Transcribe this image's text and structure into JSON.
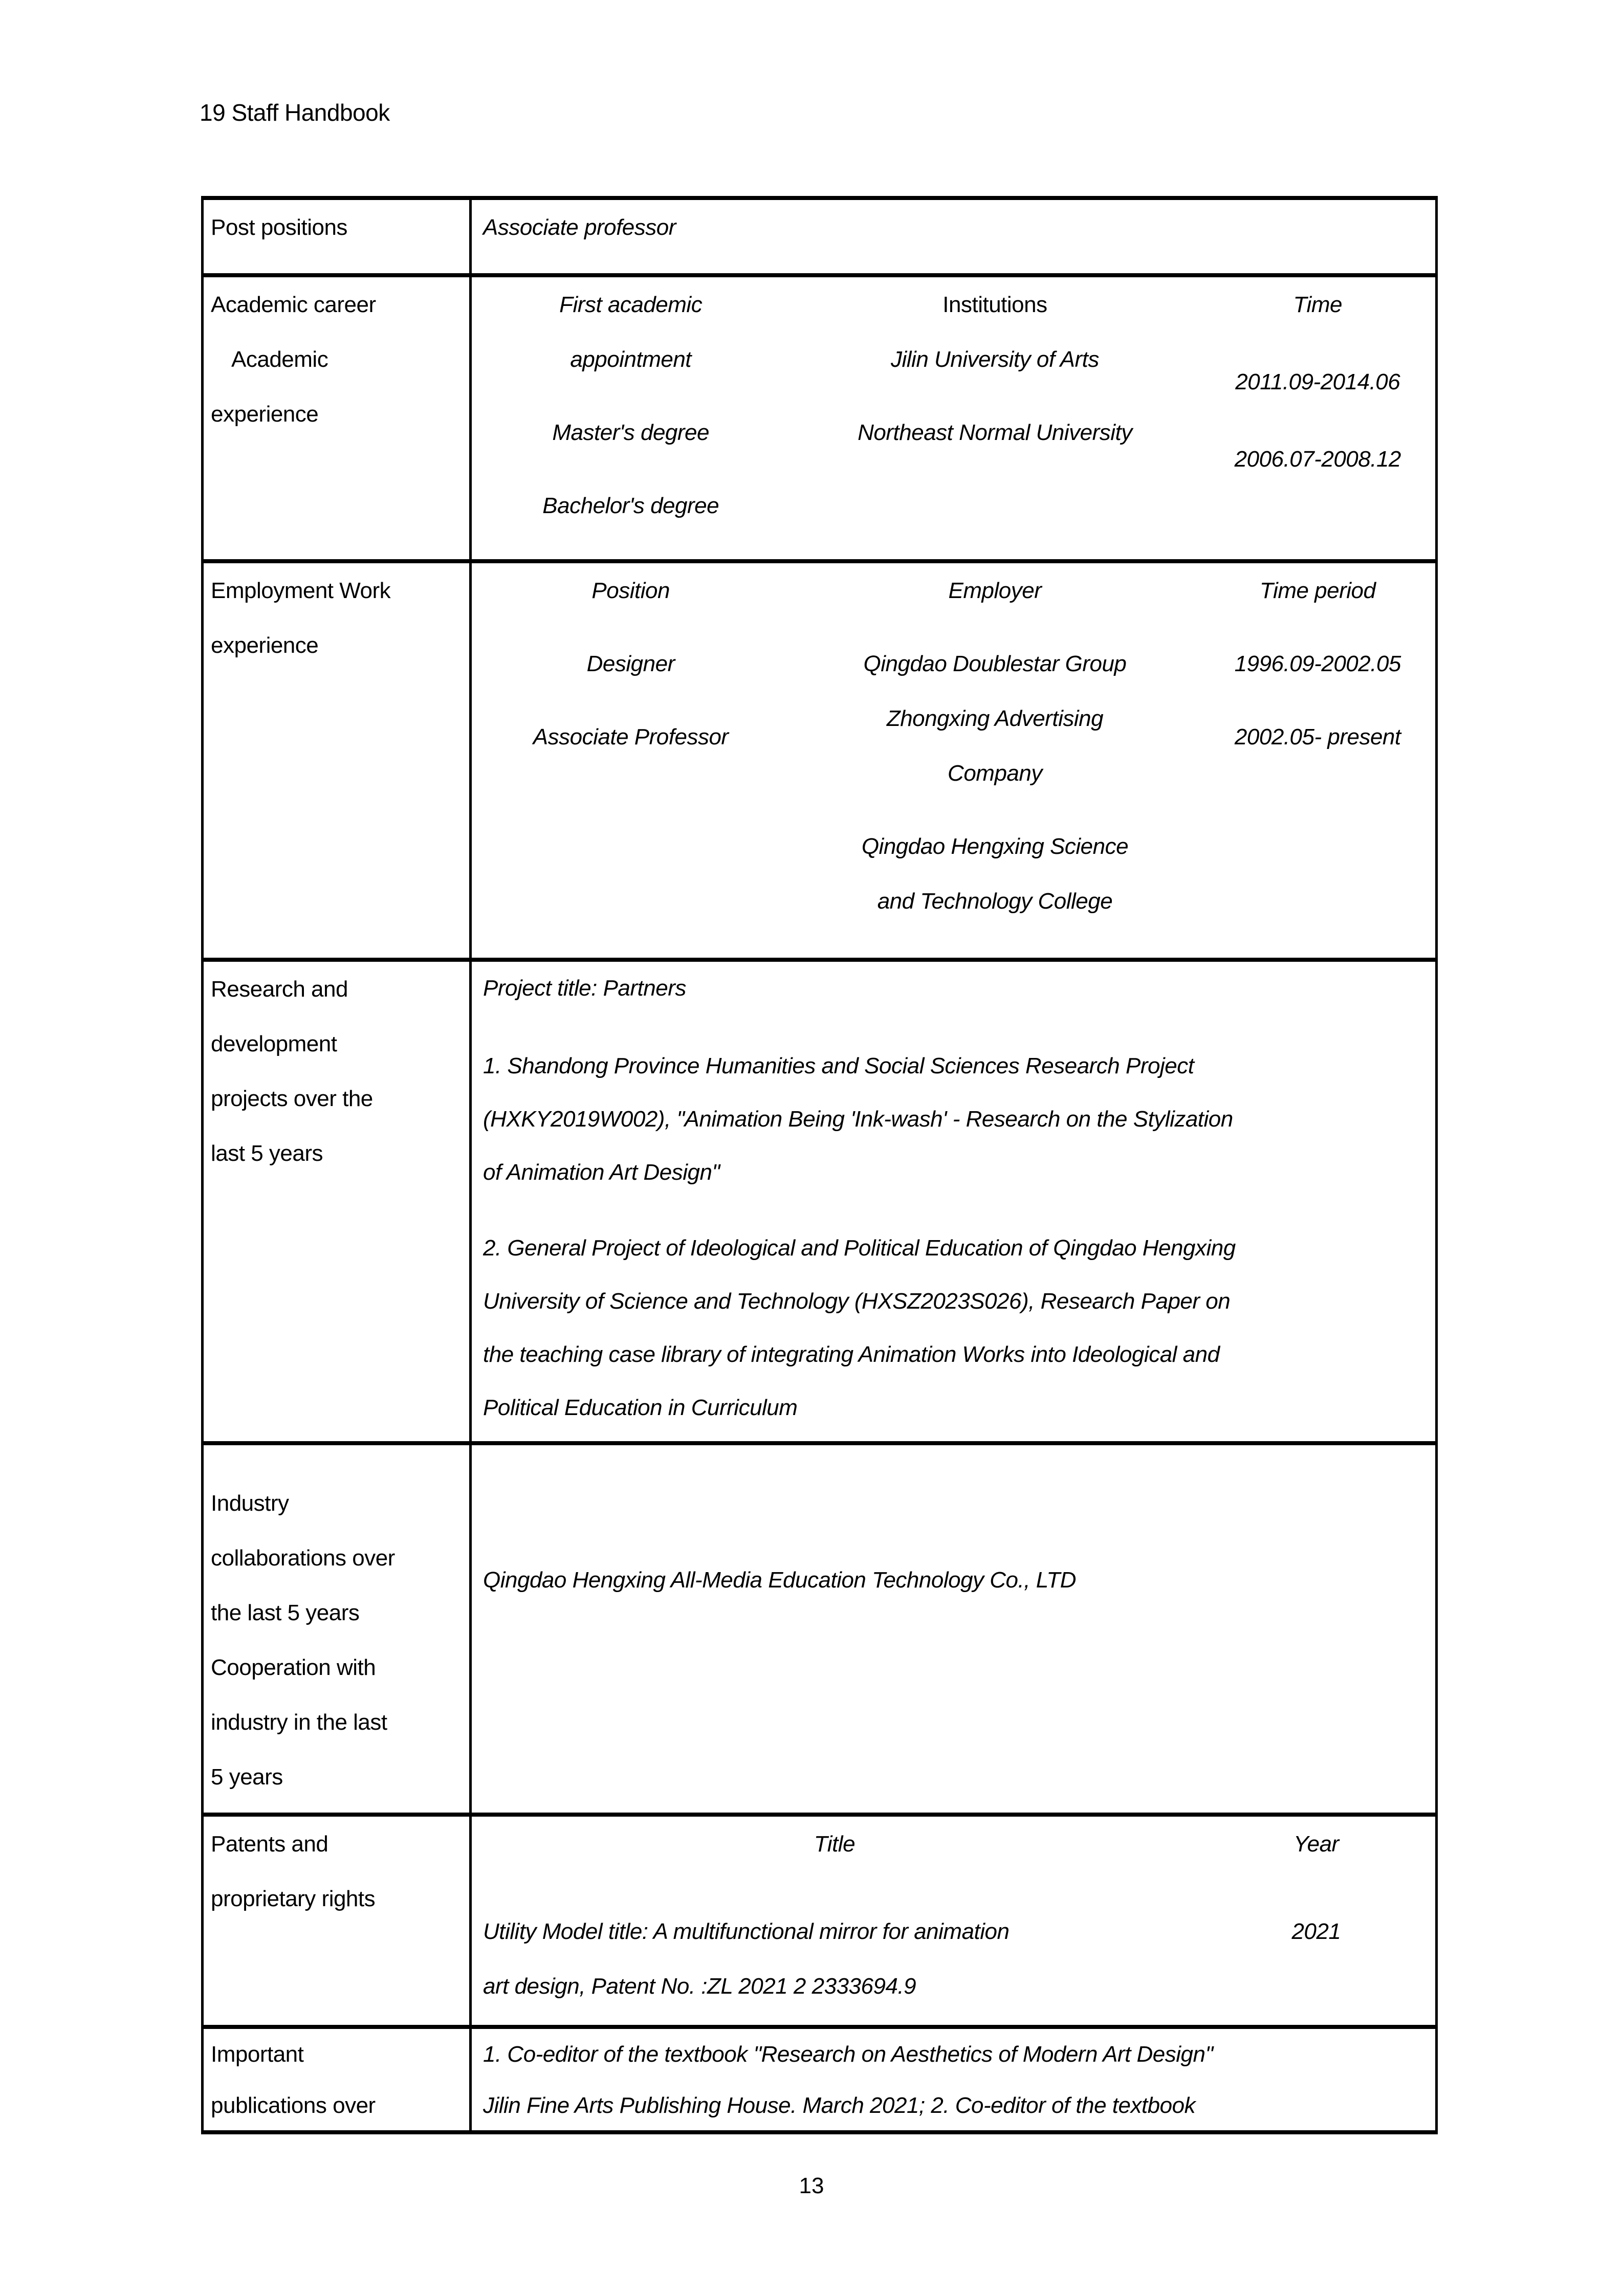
{
  "colors": {
    "text": "#000000",
    "border": "#000000",
    "background": "#ffffff"
  },
  "header": {
    "title": "19 Staff Handbook"
  },
  "footer": {
    "page_number": "13"
  },
  "rows": {
    "post_positions": {
      "label": "Post positions",
      "value": "Associate professor"
    },
    "academic": {
      "label_lines": [
        "Academic career",
        "Academic",
        "experience"
      ],
      "qualification_col": [
        "First academic",
        "appointment",
        "Master's degree",
        "Bachelor's degree"
      ],
      "institutions_col": {
        "header": "Institutions",
        "items": [
          "Jilin University of Arts",
          "Northeast Normal University"
        ]
      },
      "time_col": {
        "header": "Time",
        "items": [
          "2011.09-2014.06",
          "2006.07-2008.12"
        ]
      }
    },
    "employment": {
      "label_lines": [
        "Employment Work",
        "experience"
      ],
      "position_col": {
        "header": "Position",
        "items": [
          "Designer",
          "Associate Professor"
        ]
      },
      "employer_col": {
        "header": "Employer",
        "lines": [
          "Qingdao Doublestar Group",
          "Zhongxing Advertising",
          "Company",
          "Qingdao Hengxing Science",
          "and Technology College"
        ]
      },
      "time_col": {
        "header": "Time period",
        "items": [
          "1996.09-2002.05",
          "2002.05- present"
        ]
      }
    },
    "research": {
      "label_lines": [
        "Research and",
        "development",
        "projects over the",
        "last 5 years"
      ],
      "p1": "Project title: Partners",
      "p2": [
        "1. Shandong Province Humanities and Social Sciences Research Project",
        "(HXKY2019W002), \"Animation Being 'Ink-wash' - Research on the Stylization",
        "of Animation Art Design\""
      ],
      "p3": [
        "2. General Project of Ideological and Political Education of Qingdao Hengxing",
        "University of Science and Technology (HXSZ2023S026), Research Paper on",
        "the teaching case library of integrating Animation Works into Ideological and",
        "Political Education in Curriculum"
      ]
    },
    "industry": {
      "label_lines": [
        "Industry",
        "collaborations over",
        "the last 5 years",
        "Cooperation with",
        "industry in the last",
        "5 years"
      ],
      "value": "Qingdao Hengxing All-Media Education Technology Co., LTD"
    },
    "patents": {
      "label_lines": [
        "Patents and",
        "proprietary rights"
      ],
      "title_header": "Title",
      "year_header": "Year",
      "title_lines": [
        "Utility Model title: A multifunctional mirror for animation",
        "art design, Patent No. :ZL 2021 2 2333694.9"
      ],
      "year_value": "2021"
    },
    "publications": {
      "label_lines": [
        "Important",
        "publications over"
      ],
      "lines": [
        "1. Co-editor of the textbook \"Research on Aesthetics of Modern Art Design\"",
        "Jilin Fine Arts Publishing House. March 2021; 2. Co-editor of the textbook"
      ]
    }
  }
}
